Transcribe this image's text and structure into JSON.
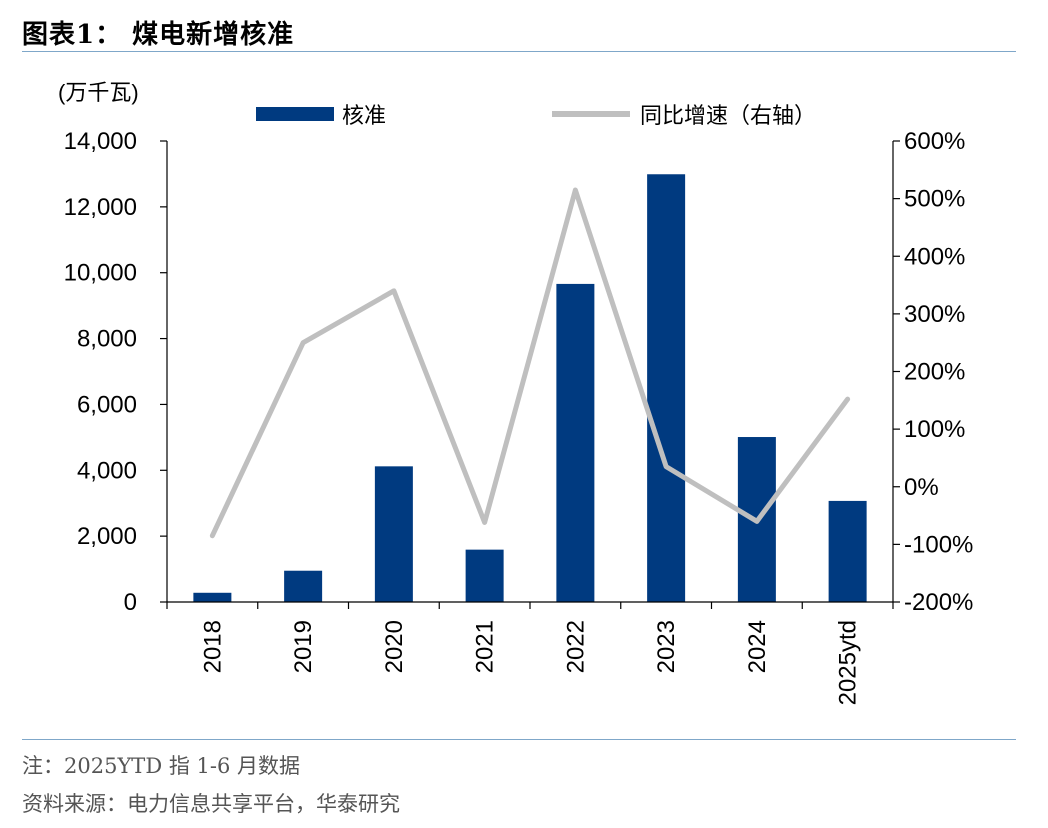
{
  "header": {
    "title": "图表1：  煤电新增核准"
  },
  "footer": {
    "note": "注：2025YTD 指 1-6 月数据",
    "source": "资料来源：电力信息共享平台，华泰研究"
  },
  "colors": {
    "bar": "#003a80",
    "line": "#bfbfbf",
    "rule": "#7fa7c9"
  },
  "chart_data": {
    "type": "bar",
    "unit_label": "(万千瓦)",
    "categories": [
      "2018",
      "2019",
      "2020",
      "2021",
      "2022",
      "2023",
      "2024",
      "2025ytd"
    ],
    "series": [
      {
        "name": "核准",
        "type": "bar",
        "axis": "left",
        "values": [
          280,
          950,
          4120,
          1590,
          9660,
          12990,
          5010,
          3070
        ]
      },
      {
        "name": "同比增速（右轴）",
        "type": "line",
        "axis": "right",
        "values": [
          -85,
          250,
          340,
          -62,
          515,
          35,
          -60,
          152
        ]
      }
    ],
    "y_left": {
      "min": 0,
      "max": 14000,
      "ticks": [
        "0",
        "2,000",
        "4,000",
        "6,000",
        "8,000",
        "10,000",
        "12,000",
        "14,000"
      ],
      "tick_values": [
        0,
        2000,
        4000,
        6000,
        8000,
        10000,
        12000,
        14000
      ]
    },
    "y_right": {
      "min": -200,
      "max": 600,
      "ticks": [
        "-200%",
        "-100%",
        "0%",
        "100%",
        "200%",
        "300%",
        "400%",
        "500%",
        "600%"
      ],
      "tick_values": [
        -200,
        -100,
        0,
        100,
        200,
        300,
        400,
        500,
        600
      ]
    },
    "legend_position": "top",
    "grid": false
  }
}
